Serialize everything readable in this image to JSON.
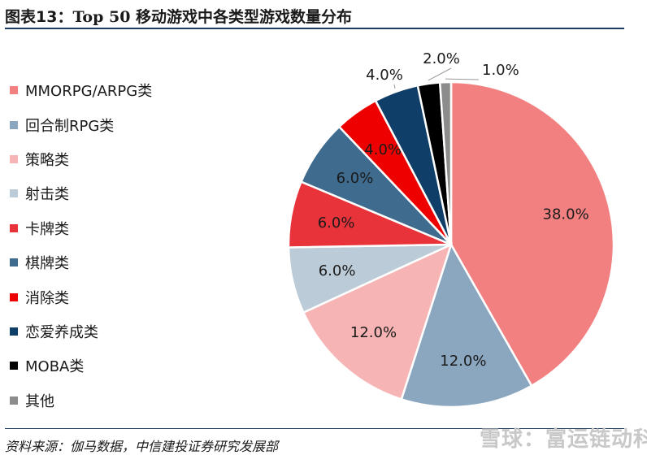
{
  "figure": {
    "label": "图表13：",
    "title": "Top 50 移动游戏中各类型游戏数量分布",
    "source": "资料来源：伽马数据，中信建投证券研究发展部",
    "watermark": "雪球：富运链动科技"
  },
  "chart_data": {
    "type": "pie",
    "title": "Top 50 移动游戏中各类型游戏数量分布",
    "legend_position": "left",
    "slices": [
      {
        "label": "MMORPG/ARPG类",
        "value": 38.0,
        "display": "38.0%",
        "color": "#f28080"
      },
      {
        "label": "回合制RPG类",
        "value": 12.0,
        "display": "12.0%",
        "color": "#8ba7c0"
      },
      {
        "label": "策略类",
        "value": 12.0,
        "display": "12.0%",
        "color": "#f7b4b4"
      },
      {
        "label": "射击类",
        "value": 6.0,
        "display": "6.0%",
        "color": "#bccbd8"
      },
      {
        "label": "卡牌类",
        "value": 6.0,
        "display": "6.0%",
        "color": "#e8333a"
      },
      {
        "label": "棋牌类",
        "value": 6.0,
        "display": "6.0%",
        "color": "#3e6b8e"
      },
      {
        "label": "消除类",
        "value": 4.0,
        "display": "4.0%",
        "color": "#ee0000"
      },
      {
        "label": "恋爱养成类",
        "value": 4.0,
        "display": "4.0%",
        "color": "#0f3f68"
      },
      {
        "label": "MOBA类",
        "value": 2.0,
        "display": "2.0%",
        "color": "#000000"
      },
      {
        "label": "其他",
        "value": 1.0,
        "display": "1.0%",
        "color": "#8c8c8c"
      }
    ]
  }
}
